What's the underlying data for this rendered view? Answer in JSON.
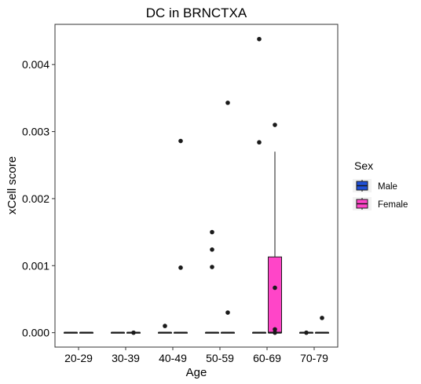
{
  "chart_data": {
    "type": "box",
    "title": "DC in BRNCTXA",
    "xlabel": "Age",
    "ylabel": "xCell score",
    "categories": [
      "20-29",
      "30-39",
      "40-49",
      "50-59",
      "60-69",
      "70-79"
    ],
    "ylim": [
      -0.000215,
      0.0046
    ],
    "yticks": [
      0.0,
      0.001,
      0.002,
      0.003,
      0.004
    ],
    "ytick_labels": [
      "0.000",
      "0.001",
      "0.002",
      "0.003",
      "0.004"
    ],
    "grid": false,
    "legend": {
      "title": "Sex",
      "placement": "right",
      "entries": [
        {
          "name": "Male",
          "color": "#1F4FD6"
        },
        {
          "name": "Female",
          "color": "#FF45C8"
        }
      ]
    },
    "series": [
      {
        "name": "Male",
        "color": "#1F4FD6",
        "boxes": [
          {
            "category": "20-29",
            "q1": 0,
            "median": 0,
            "q3": 0,
            "whisker_low": 0,
            "whisker_high": 0,
            "outliers": []
          },
          {
            "category": "30-39",
            "q1": 0,
            "median": 0,
            "q3": 0,
            "whisker_low": 0,
            "whisker_high": 0,
            "outliers": []
          },
          {
            "category": "40-49",
            "q1": 0,
            "median": 0,
            "q3": 0,
            "whisker_low": 0,
            "whisker_high": 0,
            "outliers": [
              0.0001
            ]
          },
          {
            "category": "50-59",
            "q1": 0,
            "median": 0,
            "q3": 0,
            "whisker_low": 0,
            "whisker_high": 0,
            "outliers": [
              0.0015,
              0.00124,
              0.00098
            ]
          },
          {
            "category": "60-69",
            "q1": 0,
            "median": 0,
            "q3": 0,
            "whisker_low": 0,
            "whisker_high": 0,
            "outliers": [
              0.00438,
              0.00284
            ]
          },
          {
            "category": "70-79",
            "q1": 0,
            "median": 0,
            "q3": 0,
            "whisker_low": 0,
            "whisker_high": 0,
            "outliers": [
              0
            ]
          }
        ]
      },
      {
        "name": "Female",
        "color": "#FF45C8",
        "boxes": [
          {
            "category": "20-29",
            "q1": 0,
            "median": 0,
            "q3": 0,
            "whisker_low": 0,
            "whisker_high": 0,
            "outliers": []
          },
          {
            "category": "30-39",
            "q1": 0,
            "median": 0,
            "q3": 0,
            "whisker_low": 0,
            "whisker_high": 0,
            "outliers": [
              0
            ]
          },
          {
            "category": "40-49",
            "q1": 0,
            "median": 0,
            "q3": 0,
            "whisker_low": 0,
            "whisker_high": 0,
            "outliers": [
              0.00286,
              0.00097
            ]
          },
          {
            "category": "50-59",
            "q1": 0,
            "median": 0,
            "q3": 0,
            "whisker_low": 0,
            "whisker_high": 0,
            "outliers": [
              0.00343,
              0.0003
            ]
          },
          {
            "category": "60-69",
            "q1": 0,
            "median": 0,
            "q3": 0.00113,
            "whisker_low": 0,
            "whisker_high": 0.0027,
            "outliers": [
              0.0031,
              0.00067,
              5e-05,
              0
            ]
          },
          {
            "category": "70-79",
            "q1": 0,
            "median": 0,
            "q3": 0,
            "whisker_low": 0,
            "whisker_high": 0,
            "outliers": [
              0.00022
            ]
          }
        ]
      }
    ]
  }
}
